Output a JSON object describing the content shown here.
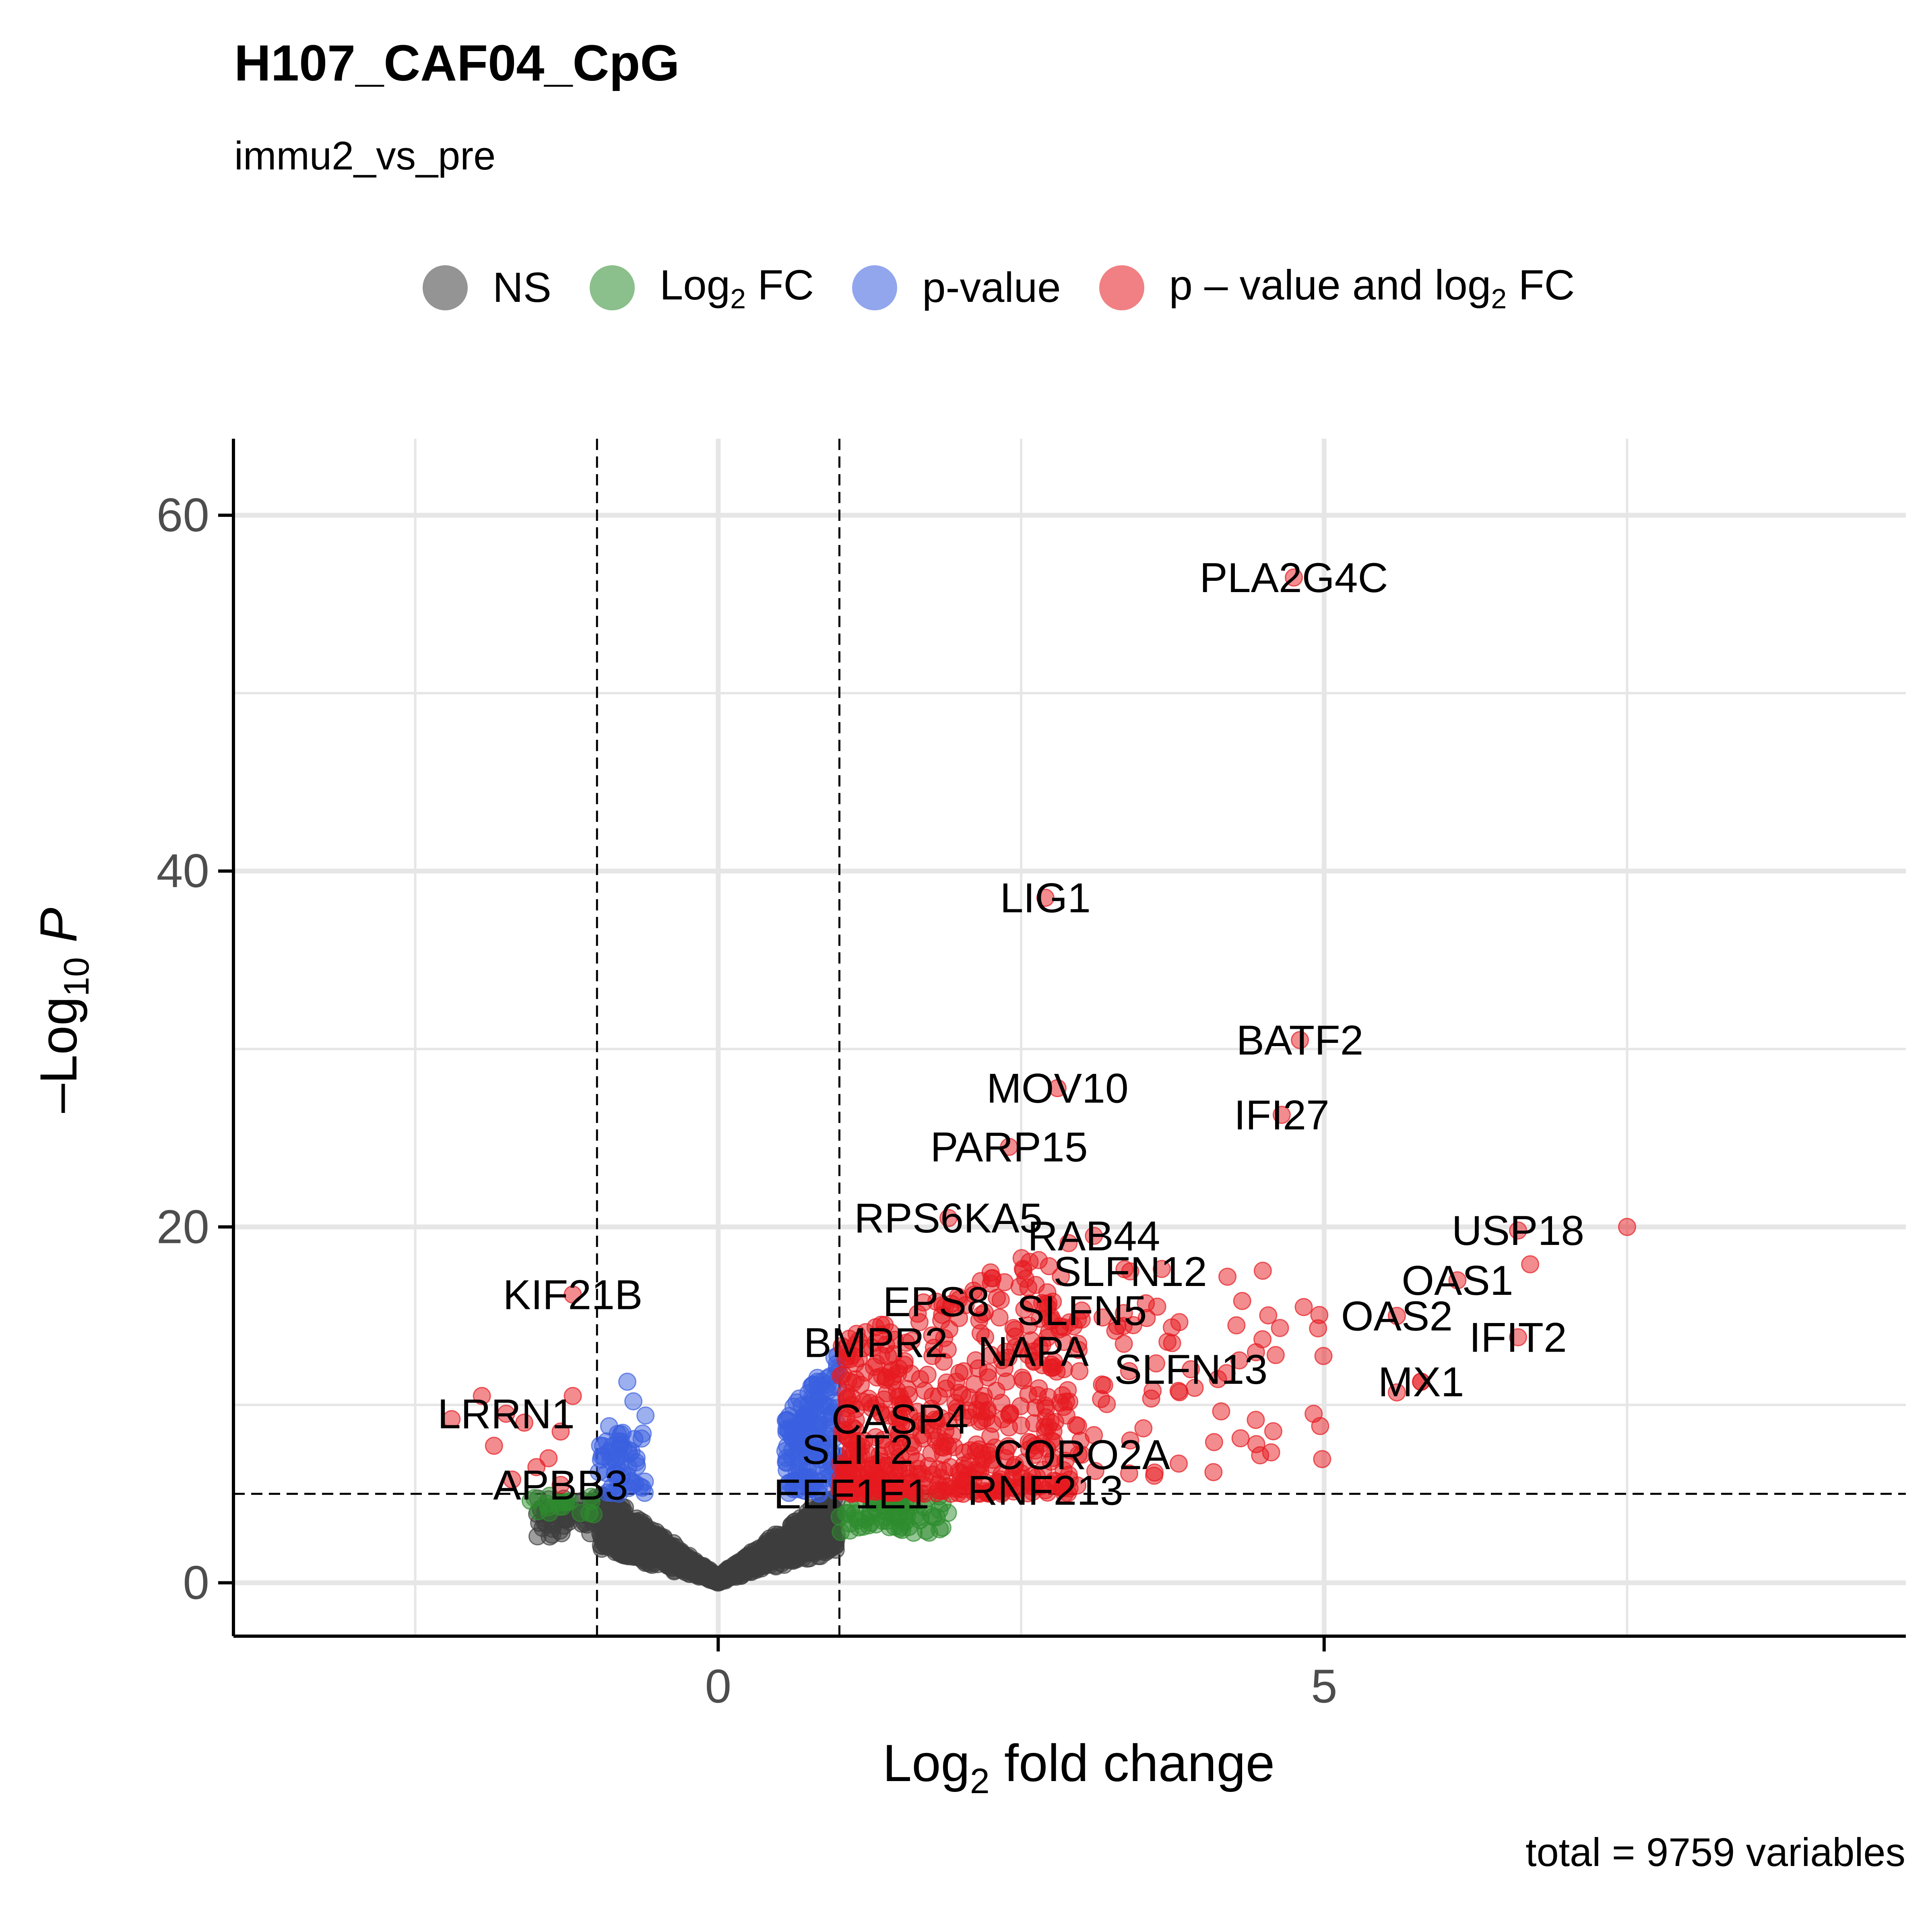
{
  "title": "H107_CAF04_CpG",
  "subtitle": "immu2_vs_pre",
  "caption": "total = 9759 variables",
  "legend": [
    {
      "label": "NS",
      "sub": "",
      "suffix": "",
      "color": "#3d3d3d"
    },
    {
      "label": "Log",
      "sub": "2",
      "suffix": " FC",
      "color": "#2e8b2e"
    },
    {
      "label": "p-value",
      "sub": "",
      "suffix": "",
      "color": "#3a5fe0"
    },
    {
      "label": "p – value and log",
      "sub": "2",
      "suffix": " FC",
      "color": "#e5191f"
    }
  ],
  "chart_data": {
    "type": "scatter",
    "title": "H107_CAF04_CpG",
    "subtitle": "immu2_vs_pre",
    "xlabel": "Log2 fold change",
    "ylabel": "-Log10 P",
    "xlim": [
      -4,
      9.8
    ],
    "ylim": [
      -3,
      64.3
    ],
    "x_ticks": [
      0,
      5
    ],
    "y_ticks": [
      0,
      20,
      40,
      60
    ],
    "fc_cutoff": 1,
    "p_cutoff_log10": 5,
    "grid": true,
    "legend_position": "top",
    "labeled_genes": [
      {
        "gene": "PLA2G4C",
        "x": 4.75,
        "y": 56.5
      },
      {
        "gene": "LIG1",
        "x": 2.7,
        "y": 38.5
      },
      {
        "gene": "BATF2",
        "x": 4.8,
        "y": 30.5
      },
      {
        "gene": "MOV10",
        "x": 2.8,
        "y": 27.8
      },
      {
        "gene": "IFI27",
        "x": 4.65,
        "y": 26.3
      },
      {
        "gene": "PARP15",
        "x": 2.4,
        "y": 24.5
      },
      {
        "gene": "RPS6KA5",
        "x": 1.9,
        "y": 20.5
      },
      {
        "gene": "USP18",
        "x": 6.6,
        "y": 19.8
      },
      {
        "gene": "RAB44",
        "x": 3.1,
        "y": 19.5
      },
      {
        "gene": "OAS1",
        "x": 6.1,
        "y": 17.0
      },
      {
        "gene": "SLFN12",
        "x": 3.4,
        "y": 17.5
      },
      {
        "gene": "KIF21B",
        "x": -1.2,
        "y": 16.2
      },
      {
        "gene": "EPS8",
        "x": 1.8,
        "y": 15.8
      },
      {
        "gene": "SLFN5",
        "x": 3.0,
        "y": 15.3
      },
      {
        "gene": "OAS2",
        "x": 5.6,
        "y": 15.0
      },
      {
        "gene": "IFIT2",
        "x": 6.6,
        "y": 13.8
      },
      {
        "gene": "BMPR2",
        "x": 1.3,
        "y": 13.5
      },
      {
        "gene": "NAPA",
        "x": 2.6,
        "y": 13.0
      },
      {
        "gene": "SLFN13",
        "x": 3.9,
        "y": 12.0
      },
      {
        "gene": "MX1",
        "x": 5.8,
        "y": 11.3
      },
      {
        "gene": "LRRN1",
        "x": -1.75,
        "y": 9.5
      },
      {
        "gene": "CASP4",
        "x": 1.5,
        "y": 9.2
      },
      {
        "gene": "CORO2A",
        "x": 3.0,
        "y": 7.2
      },
      {
        "gene": "SLIT2",
        "x": 1.15,
        "y": 7.5
      },
      {
        "gene": "APBB3",
        "x": -1.3,
        "y": 5.5
      },
      {
        "gene": "EEF1E1",
        "x": 1.1,
        "y": 5.0
      },
      {
        "gene": "RNF213",
        "x": 2.7,
        "y": 5.2
      }
    ],
    "background_points": "~9759 genes shown as semi-transparent dots coloured NS, Log2 FC, p-value, or p-value and log2 FC"
  }
}
